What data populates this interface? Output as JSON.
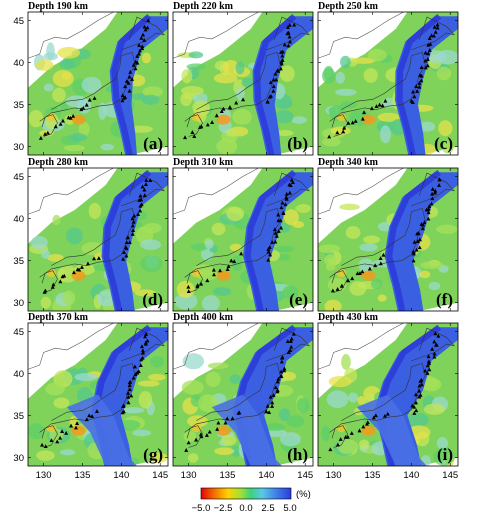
{
  "figure": {
    "panels": [
      {
        "title": "Depth 190 km",
        "label": "(a)"
      },
      {
        "title": "Depth 220 km",
        "label": "(b)"
      },
      {
        "title": "Depth 250 km",
        "label": "(c)"
      },
      {
        "title": "Depth 280 km",
        "label": "(d)"
      },
      {
        "title": "Depth 310 km",
        "label": "(e)"
      },
      {
        "title": "Depth 340 km",
        "label": "(f)"
      },
      {
        "title": "Depth 370 km",
        "label": "(g)"
      },
      {
        "title": "Depth 400 km",
        "label": "(h)"
      },
      {
        "title": "Depth 430 km",
        "label": "(i)"
      }
    ],
    "lon_ticks": [
      "130",
      "135",
      "140",
      "145"
    ],
    "lat_ticks": [
      "45",
      "40",
      "35",
      "30"
    ],
    "colorbar": {
      "unit": "(%)",
      "tick_labels": [
        "−5.0",
        "−2.5",
        "0.0",
        "2.5",
        "5.0"
      ],
      "colors": [
        "#e8000a",
        "#f26a00",
        "#ffd200",
        "#9be03c",
        "#3cd27a",
        "#5ac8e6",
        "#3f7de8",
        "#2a3ce0"
      ]
    }
  }
}
